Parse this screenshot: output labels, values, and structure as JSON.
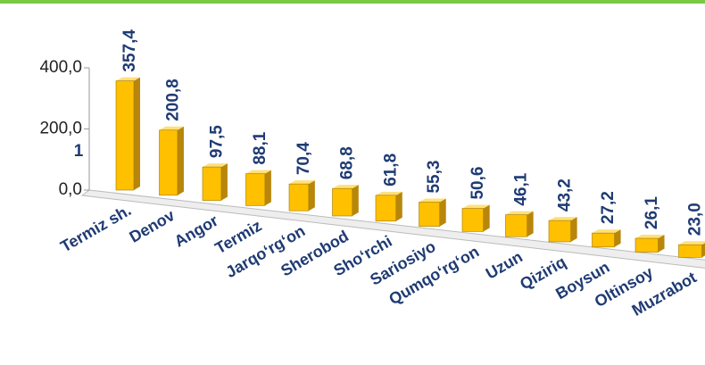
{
  "chart_data": {
    "type": "bar",
    "annotation": "1",
    "categories": [
      "Termiz sh.",
      "Denov",
      "Angor",
      "Termiz",
      "Jarqo‘rg‘on",
      "Sherobod",
      "Sho‘rchi",
      "Sariosiyo",
      "Qumqo‘rg‘on",
      "Uzun",
      "Qiziriq",
      "Boysun",
      "Oltinsoy",
      "Muzrabot"
    ],
    "values": [
      357.4,
      200.8,
      97.5,
      88.1,
      70.4,
      68.8,
      61.8,
      55.3,
      50.6,
      46.1,
      43.2,
      27.2,
      26.1,
      23.0
    ],
    "value_labels": [
      "357,4",
      "200,8",
      "97,5",
      "88,1",
      "70,4",
      "68,8",
      "61,8",
      "55,3",
      "50,6",
      "46,1",
      "43,2",
      "27,2",
      "26,1",
      "23,0"
    ],
    "color": "#ffc000",
    "ylim": [
      0,
      400
    ],
    "yticks": [
      {
        "value": 0,
        "label": "0,0"
      },
      {
        "value": 200,
        "label": "200,0"
      },
      {
        "value": 400,
        "label": "400,0"
      }
    ]
  }
}
